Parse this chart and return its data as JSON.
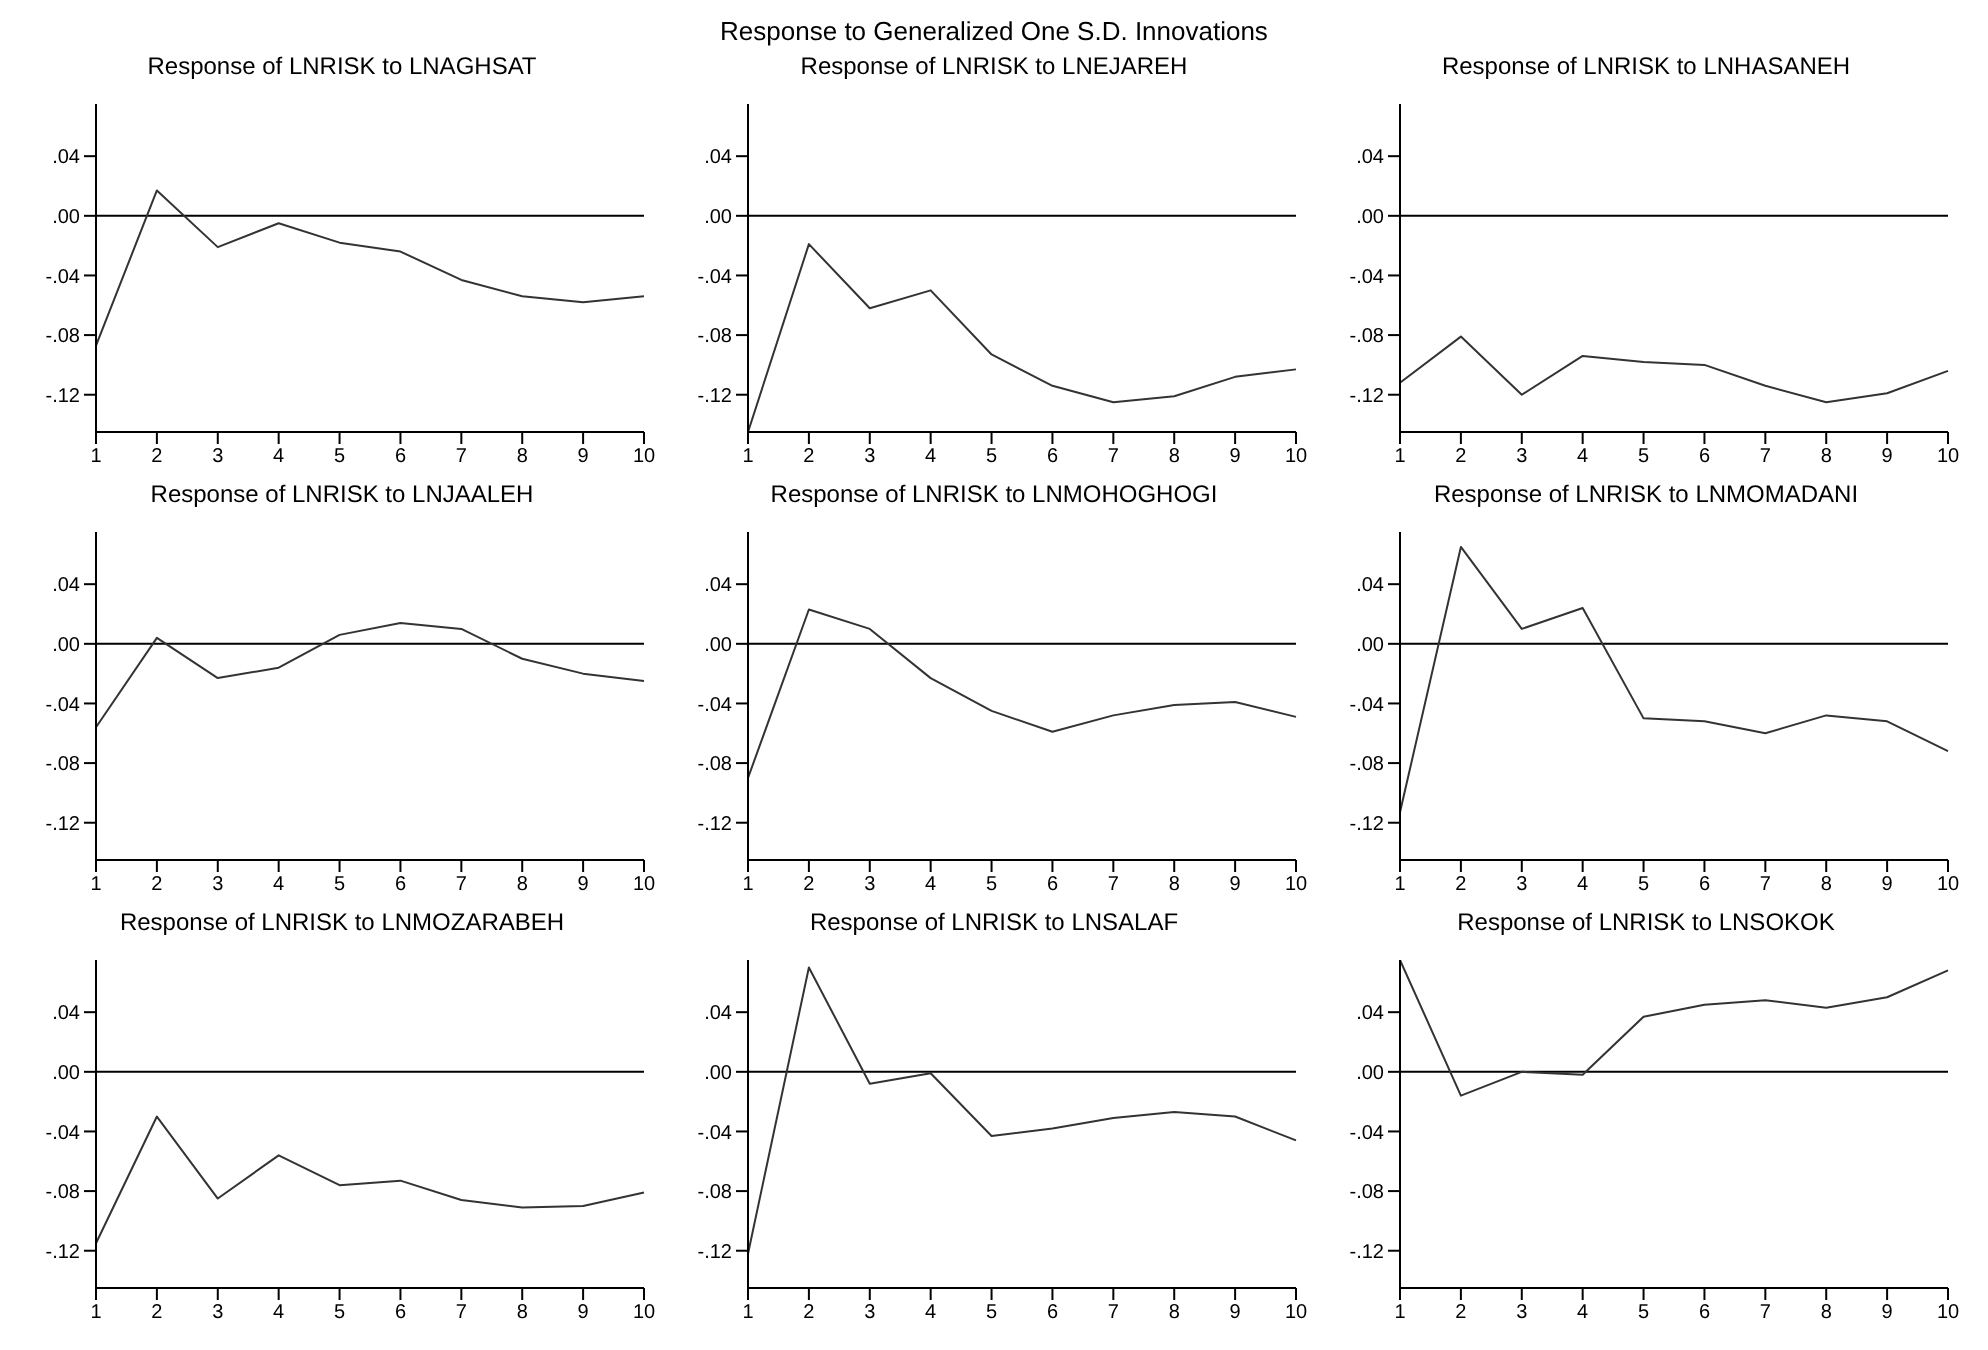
{
  "chart_data": [
    {
      "type": "line",
      "title": "Response of LNRISK to LNAGHSAT",
      "annotations": [
        "Response to Generalized One S.D. Innovations"
      ],
      "categories": [
        "1",
        "2",
        "3",
        "4",
        "5",
        "6",
        "7",
        "8",
        "9",
        "10"
      ],
      "series": [
        {
          "color": "#333333",
          "values": [
            -0.087,
            0.017,
            -0.021,
            -0.005,
            -0.018,
            -0.024,
            -0.043,
            -0.054,
            -0.058,
            -0.054
          ]
        }
      ],
      "ylim": [
        -0.145,
        0.075
      ],
      "yticks": [
        {
          "value": 0.04,
          "label": ".04"
        },
        {
          "value": 0,
          "label": ".00"
        },
        {
          "value": -0.04,
          "label": "-.04"
        },
        {
          "value": -0.08,
          "label": "-.08"
        },
        {
          "value": -0.12,
          "label": "-.12"
        }
      ],
      "ref_lines": [
        {
          "axis": "y",
          "value": 0,
          "color": "#000000"
        }
      ],
      "grid": false,
      "legend": false,
      "marker": "none",
      "line_style": "solid"
    },
    {
      "type": "line",
      "title": "Response of LNRISK to LNEJAREH",
      "categories": [
        "1",
        "2",
        "3",
        "4",
        "5",
        "6",
        "7",
        "8",
        "9",
        "10"
      ],
      "series": [
        {
          "color": "#333333",
          "values": [
            -0.145,
            -0.019,
            -0.062,
            -0.05,
            -0.093,
            -0.114,
            -0.125,
            -0.121,
            -0.108,
            -0.103
          ]
        }
      ],
      "ylim": [
        -0.145,
        0.075
      ],
      "yticks": [
        {
          "value": 0.04,
          "label": ".04"
        },
        {
          "value": 0,
          "label": ".00"
        },
        {
          "value": -0.04,
          "label": "-.04"
        },
        {
          "value": -0.08,
          "label": "-.08"
        },
        {
          "value": -0.12,
          "label": "-.12"
        }
      ],
      "ref_lines": [
        {
          "axis": "y",
          "value": 0,
          "color": "#000000"
        }
      ],
      "grid": false,
      "legend": false,
      "marker": "none",
      "line_style": "solid"
    },
    {
      "type": "line",
      "title": "Response of LNRISK to LNHASANEH",
      "categories": [
        "1",
        "2",
        "3",
        "4",
        "5",
        "6",
        "7",
        "8",
        "9",
        "10"
      ],
      "series": [
        {
          "color": "#333333",
          "values": [
            -0.112,
            -0.081,
            -0.12,
            -0.094,
            -0.098,
            -0.1,
            -0.114,
            -0.125,
            -0.119,
            -0.104
          ]
        }
      ],
      "ylim": [
        -0.145,
        0.075
      ],
      "yticks": [
        {
          "value": 0.04,
          "label": ".04"
        },
        {
          "value": 0,
          "label": ".00"
        },
        {
          "value": -0.04,
          "label": "-.04"
        },
        {
          "value": -0.08,
          "label": "-.08"
        },
        {
          "value": -0.12,
          "label": "-.12"
        }
      ],
      "ref_lines": [
        {
          "axis": "y",
          "value": 0,
          "color": "#000000"
        }
      ],
      "grid": false,
      "legend": false,
      "marker": "none",
      "line_style": "solid"
    },
    {
      "type": "line",
      "title": "Response of LNRISK to LNJAALEH",
      "categories": [
        "1",
        "2",
        "3",
        "4",
        "5",
        "6",
        "7",
        "8",
        "9",
        "10"
      ],
      "series": [
        {
          "color": "#333333",
          "values": [
            -0.056,
            0.004,
            -0.023,
            -0.016,
            0.006,
            0.014,
            0.01,
            -0.01,
            -0.02,
            -0.025
          ]
        }
      ],
      "ylim": [
        -0.145,
        0.075
      ],
      "yticks": [
        {
          "value": 0.04,
          "label": ".04"
        },
        {
          "value": 0,
          "label": ".00"
        },
        {
          "value": -0.04,
          "label": "-.04"
        },
        {
          "value": -0.08,
          "label": "-.08"
        },
        {
          "value": -0.12,
          "label": "-.12"
        }
      ],
      "ref_lines": [
        {
          "axis": "y",
          "value": 0,
          "color": "#000000"
        }
      ],
      "grid": false,
      "legend": false,
      "marker": "none",
      "line_style": "solid"
    },
    {
      "type": "line",
      "title": "Response of LNRISK to LNMOHOGHOGI",
      "categories": [
        "1",
        "2",
        "3",
        "4",
        "5",
        "6",
        "7",
        "8",
        "9",
        "10"
      ],
      "series": [
        {
          "color": "#333333",
          "values": [
            -0.09,
            0.023,
            0.01,
            -0.023,
            -0.045,
            -0.059,
            -0.048,
            -0.041,
            -0.039,
            -0.049
          ]
        }
      ],
      "ylim": [
        -0.145,
        0.075
      ],
      "yticks": [
        {
          "value": 0.04,
          "label": ".04"
        },
        {
          "value": 0,
          "label": ".00"
        },
        {
          "value": -0.04,
          "label": "-.04"
        },
        {
          "value": -0.08,
          "label": "-.08"
        },
        {
          "value": -0.12,
          "label": "-.12"
        }
      ],
      "ref_lines": [
        {
          "axis": "y",
          "value": 0,
          "color": "#000000"
        }
      ],
      "grid": false,
      "legend": false,
      "marker": "none",
      "line_style": "solid"
    },
    {
      "type": "line",
      "title": "Response of LNRISK to LNMOMADANI",
      "categories": [
        "1",
        "2",
        "3",
        "4",
        "5",
        "6",
        "7",
        "8",
        "9",
        "10"
      ],
      "series": [
        {
          "color": "#333333",
          "values": [
            -0.113,
            0.065,
            0.01,
            0.024,
            -0.05,
            -0.052,
            -0.06,
            -0.048,
            -0.052,
            -0.072
          ]
        }
      ],
      "ylim": [
        -0.145,
        0.075
      ],
      "yticks": [
        {
          "value": 0.04,
          "label": ".04"
        },
        {
          "value": 0,
          "label": ".00"
        },
        {
          "value": -0.04,
          "label": "-.04"
        },
        {
          "value": -0.08,
          "label": "-.08"
        },
        {
          "value": -0.12,
          "label": "-.12"
        }
      ],
      "ref_lines": [
        {
          "axis": "y",
          "value": 0,
          "color": "#000000"
        }
      ],
      "grid": false,
      "legend": false,
      "marker": "none",
      "line_style": "solid"
    },
    {
      "type": "line",
      "title": "Response of LNRISK to LNMOZARABEH",
      "categories": [
        "1",
        "2",
        "3",
        "4",
        "5",
        "6",
        "7",
        "8",
        "9",
        "10"
      ],
      "series": [
        {
          "color": "#333333",
          "values": [
            -0.115,
            -0.03,
            -0.085,
            -0.056,
            -0.076,
            -0.073,
            -0.086,
            -0.091,
            -0.09,
            -0.081
          ]
        }
      ],
      "ylim": [
        -0.145,
        0.075
      ],
      "yticks": [
        {
          "value": 0.04,
          "label": ".04"
        },
        {
          "value": 0,
          "label": ".00"
        },
        {
          "value": -0.04,
          "label": "-.04"
        },
        {
          "value": -0.08,
          "label": "-.08"
        },
        {
          "value": -0.12,
          "label": "-.12"
        }
      ],
      "ref_lines": [
        {
          "axis": "y",
          "value": 0,
          "color": "#000000"
        }
      ],
      "grid": false,
      "legend": false,
      "marker": "none",
      "line_style": "solid"
    },
    {
      "type": "line",
      "title": "Response of LNRISK to LNSALAF",
      "categories": [
        "1",
        "2",
        "3",
        "4",
        "5",
        "6",
        "7",
        "8",
        "9",
        "10"
      ],
      "series": [
        {
          "color": "#333333",
          "values": [
            -0.122,
            0.07,
            -0.008,
            -0.001,
            -0.043,
            -0.038,
            -0.031,
            -0.027,
            -0.03,
            -0.046
          ]
        }
      ],
      "ylim": [
        -0.145,
        0.075
      ],
      "yticks": [
        {
          "value": 0.04,
          "label": ".04"
        },
        {
          "value": 0,
          "label": ".00"
        },
        {
          "value": -0.04,
          "label": "-.04"
        },
        {
          "value": -0.08,
          "label": "-.08"
        },
        {
          "value": -0.12,
          "label": "-.12"
        }
      ],
      "ref_lines": [
        {
          "axis": "y",
          "value": 0,
          "color": "#000000"
        }
      ],
      "grid": false,
      "legend": false,
      "marker": "none",
      "line_style": "solid"
    },
    {
      "type": "line",
      "title": "Response of LNRISK to LNSOKOK",
      "categories": [
        "1",
        "2",
        "3",
        "4",
        "5",
        "6",
        "7",
        "8",
        "9",
        "10"
      ],
      "series": [
        {
          "color": "#333333",
          "values": [
            0.075,
            -0.016,
            0,
            -0.002,
            0.037,
            0.045,
            0.048,
            0.043,
            0.05,
            0.068
          ]
        }
      ],
      "ylim": [
        -0.145,
        0.075
      ],
      "yticks": [
        {
          "value": 0.04,
          "label": ".04"
        },
        {
          "value": 0,
          "label": ".00"
        },
        {
          "value": -0.04,
          "label": "-.04"
        },
        {
          "value": -0.08,
          "label": "-.08"
        },
        {
          "value": -0.12,
          "label": "-.12"
        }
      ],
      "ref_lines": [
        {
          "axis": "y",
          "value": 0,
          "color": "#000000"
        }
      ],
      "grid": false,
      "legend": false,
      "marker": "none",
      "line_style": "solid"
    }
  ]
}
